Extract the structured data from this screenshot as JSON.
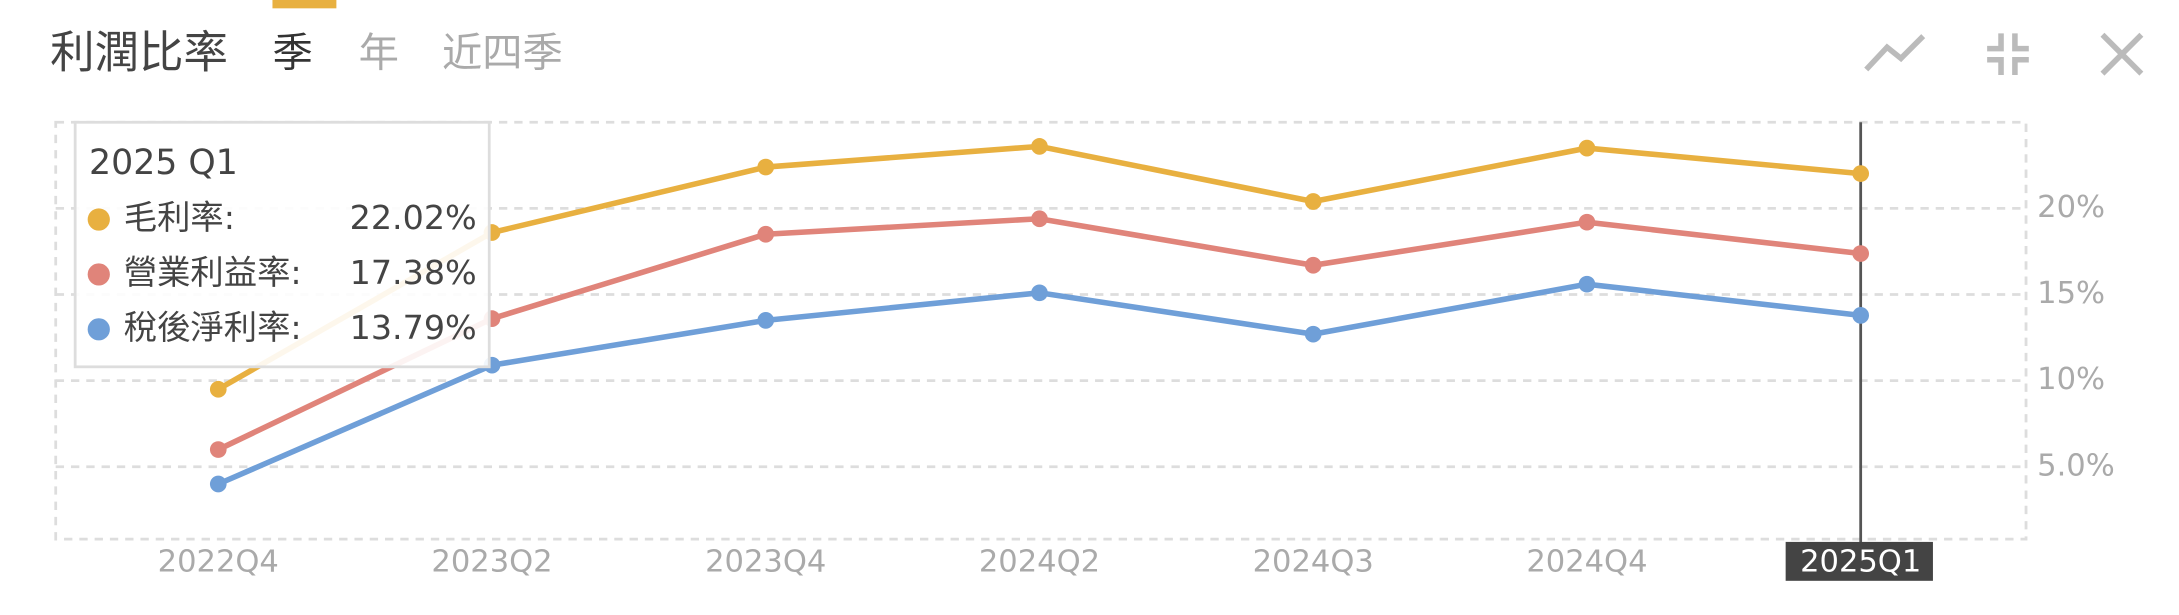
{
  "chart_data": {
    "type": "line",
    "title": "利潤比率",
    "tabs": [
      "季",
      "年",
      "近四季"
    ],
    "categories": [
      "2022Q4",
      "2023Q2",
      "2023Q4",
      "2024Q2",
      "2024Q3",
      "2024Q4",
      "2025Q1"
    ],
    "series": [
      {
        "name": "毛利率",
        "color": "#e8b040",
        "values": [
          9.5,
          18.6,
          22.4,
          23.6,
          20.4,
          23.5,
          22.02
        ]
      },
      {
        "name": "營業利益率",
        "color": "#e0847a",
        "values": [
          6.0,
          13.6,
          18.5,
          19.4,
          16.7,
          19.2,
          17.38
        ]
      },
      {
        "name": "稅後淨利率",
        "color": "#6f9fd8",
        "values": [
          4.0,
          10.9,
          13.5,
          15.1,
          12.7,
          15.6,
          13.79
        ]
      }
    ],
    "ylim": [
      0.8,
      25
    ],
    "yticks": [
      {
        "value": 5,
        "label": "5.0%"
      },
      {
        "value": 10,
        "label": "10%"
      },
      {
        "value": 15,
        "label": "15%"
      },
      {
        "value": 20,
        "label": "20%"
      }
    ],
    "grid": true,
    "tooltip": {
      "title": "2025 Q1",
      "items": [
        {
          "label": "毛利率:",
          "value": "22.02%"
        },
        {
          "label": "營業利益率:",
          "value": "17.38%"
        },
        {
          "label": "稅後淨利率:",
          "value": "13.79%"
        }
      ]
    }
  }
}
